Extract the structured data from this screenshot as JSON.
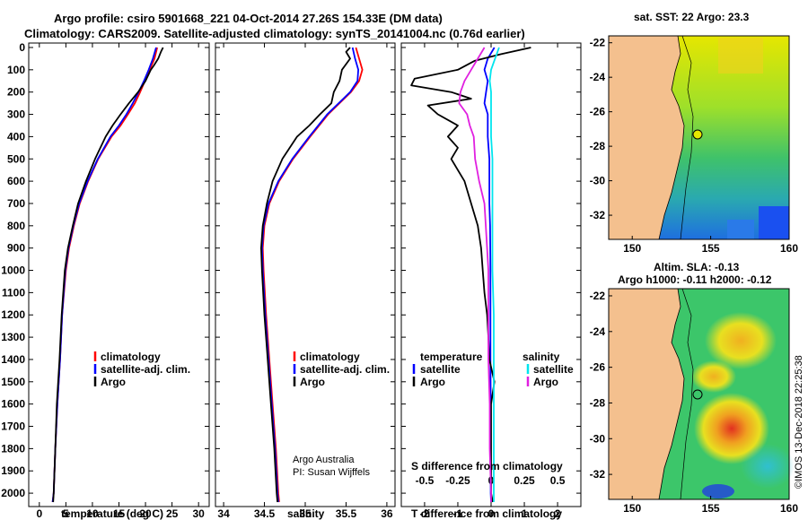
{
  "title": {
    "line1": "Argo profile: csiro 5901668_221 04-Oct-2014 27.26S 154.33E (DM data)",
    "line2": "Climatology: CARS2009. Satellite-adjusted climatology: synTS_20141004.nc (0.76d earlier)"
  },
  "colors": {
    "climatology": "#ff0000",
    "satellite": "#0000ff",
    "argo": "#000000",
    "sal_satellite": "#00e5ee",
    "sal_argo": "#e020e0",
    "land": "#f4c08e"
  },
  "chart_data": [
    {
      "type": "line",
      "id": "temperature",
      "xlabel": "temperature (deg C)",
      "xlim": [
        -2,
        32
      ],
      "ylim": [
        2060,
        -20
      ],
      "xticks": [
        0,
        5,
        10,
        15,
        20,
        25,
        30
      ],
      "xtick_labels": [
        "0",
        "5",
        "10",
        "15",
        "20",
        "25",
        "30"
      ],
      "yticks": [
        0,
        100,
        200,
        300,
        400,
        500,
        600,
        700,
        800,
        900,
        1000,
        1100,
        1200,
        1300,
        1400,
        1500,
        1600,
        1700,
        1800,
        1900,
        2000
      ],
      "ytick_labels": [
        "0",
        "100",
        "200",
        "300",
        "400",
        "500",
        "600",
        "700",
        "800",
        "900",
        "1000",
        "1100",
        "1200",
        "1300",
        "1400",
        "1500",
        "1600",
        "1700",
        "1800",
        "1900",
        "2000"
      ],
      "legend": [
        "climatology",
        "satellite-adj. clim.",
        "Argo"
      ],
      "series": [
        {
          "name": "climatology",
          "color": "#ff0000",
          "depth": [
            0,
            50,
            100,
            150,
            200,
            250,
            300,
            350,
            400,
            500,
            600,
            700,
            800,
            900,
            1000,
            1200,
            1400,
            1600,
            1800,
            2000,
            2040
          ],
          "values": [
            22.2,
            21.7,
            20.8,
            19.9,
            19.0,
            18.0,
            16.7,
            15.3,
            13.6,
            11.1,
            9.2,
            7.6,
            6.5,
            5.6,
            5.0,
            4.3,
            3.9,
            3.4,
            3.0,
            2.7,
            2.5
          ]
        },
        {
          "name": "satellite-adj. clim.",
          "color": "#0000ff",
          "depth": [
            0,
            50,
            100,
            150,
            200,
            250,
            300,
            350,
            400,
            500,
            600,
            700,
            800,
            900,
            1000,
            1200,
            1400,
            1600,
            1800,
            2000,
            2040
          ],
          "values": [
            22.0,
            21.4,
            20.6,
            19.7,
            18.7,
            17.6,
            16.4,
            15.0,
            13.4,
            11.0,
            9.1,
            7.5,
            6.4,
            5.5,
            4.9,
            4.3,
            3.9,
            3.4,
            3.0,
            2.7,
            2.5
          ]
        },
        {
          "name": "Argo",
          "color": "#000000",
          "depth": [
            0,
            20,
            50,
            80,
            100,
            150,
            200,
            250,
            300,
            350,
            400,
            500,
            600,
            700,
            800,
            900,
            1000,
            1200,
            1400,
            1600,
            1800,
            2000,
            2040
          ],
          "values": [
            23.3,
            22.9,
            22.4,
            21.6,
            21.0,
            20.0,
            18.6,
            16.9,
            15.3,
            13.8,
            12.5,
            10.5,
            8.8,
            7.3,
            6.3,
            5.4,
            4.8,
            4.2,
            3.8,
            3.3,
            3.0,
            2.7,
            2.6
          ]
        }
      ]
    },
    {
      "type": "line",
      "id": "salinity",
      "xlabel": "salinity",
      "xlim": [
        33.9,
        36.1
      ],
      "ylim": [
        2060,
        -20
      ],
      "xticks": [
        34,
        34.5,
        35,
        35.5,
        36
      ],
      "xtick_labels": [
        "34",
        "34.5",
        "35",
        "35.5",
        "36"
      ],
      "legend": [
        "climatology",
        "satellite-adj. clim.",
        "Argo"
      ],
      "annotation": [
        "Argo Australia",
        "PI: Susan Wijffels"
      ],
      "series": [
        {
          "name": "climatology",
          "color": "#ff0000",
          "depth": [
            0,
            50,
            100,
            150,
            200,
            300,
            400,
            500,
            600,
            700,
            800,
            900,
            1000,
            1200,
            1400,
            1600,
            1800,
            2000,
            2040
          ],
          "values": [
            35.62,
            35.66,
            35.7,
            35.66,
            35.56,
            35.28,
            35.06,
            34.85,
            34.68,
            34.56,
            34.5,
            34.48,
            34.49,
            34.52,
            34.56,
            34.6,
            34.64,
            34.67,
            34.68
          ]
        },
        {
          "name": "satellite-adj. clim.",
          "color": "#0000ff",
          "depth": [
            0,
            50,
            100,
            150,
            200,
            300,
            400,
            500,
            600,
            700,
            800,
            900,
            1000,
            1200,
            1400,
            1600,
            1800,
            2000,
            2040
          ],
          "values": [
            35.58,
            35.61,
            35.65,
            35.64,
            35.55,
            35.27,
            35.05,
            34.84,
            34.67,
            34.55,
            34.49,
            34.47,
            34.48,
            34.51,
            34.55,
            34.59,
            34.63,
            34.66,
            34.67
          ]
        },
        {
          "name": "Argo",
          "color": "#000000",
          "depth": [
            0,
            20,
            50,
            100,
            150,
            200,
            250,
            300,
            350,
            400,
            500,
            600,
            700,
            800,
            900,
            1000,
            1200,
            1400,
            1600,
            1800,
            2000,
            2040
          ],
          "values": [
            35.55,
            35.5,
            35.55,
            35.45,
            35.42,
            35.35,
            35.32,
            35.18,
            35.05,
            34.9,
            34.72,
            34.6,
            34.53,
            34.48,
            34.46,
            34.47,
            34.5,
            34.54,
            34.58,
            34.62,
            34.65,
            34.66
          ]
        }
      ]
    },
    {
      "type": "line",
      "id": "difference",
      "xlabel": "T difference from climatology",
      "xlabel2": "S difference from climatology",
      "xlim": [
        -2.7,
        2.7
      ],
      "ylim": [
        2060,
        -20
      ],
      "xticks": [
        -2,
        -1,
        0,
        1,
        2
      ],
      "xtick_labels": [
        "-2",
        "-1",
        "0",
        "1",
        "2"
      ],
      "s_ticks": [
        -0.5,
        -0.25,
        0,
        0.25,
        0.5
      ],
      "s_tick_labels": [
        "-0.5",
        "-0.25",
        "0",
        "0.25",
        "0.5"
      ],
      "s_scale": 4,
      "legend_left_title": "temperature",
      "legend_right_title": "salinity",
      "legend": [
        "satellite",
        "Argo",
        "satellite",
        "Argo"
      ],
      "series": [
        {
          "name": "temperature satellite",
          "color": "#0000ff",
          "depth": [
            0,
            50,
            100,
            150,
            200,
            250,
            300,
            400,
            500,
            600,
            700,
            800,
            1000,
            1200,
            1400,
            1600,
            1800,
            2000,
            2040
          ],
          "values": [
            0.1,
            -0.1,
            -0.2,
            -0.1,
            -0.15,
            -0.2,
            -0.1,
            -0.1,
            -0.05,
            -0.05,
            -0.05,
            -0.03,
            -0.02,
            -0.02,
            -0.02,
            -0.01,
            -0.01,
            -0.01,
            0.0
          ]
        },
        {
          "name": "temperature Argo",
          "color": "#000000",
          "depth": [
            0,
            30,
            60,
            100,
            140,
            170,
            200,
            230,
            260,
            300,
            350,
            400,
            450,
            500,
            600,
            700,
            800,
            900,
            1000,
            1100,
            1200,
            1300,
            1400,
            1500,
            1600,
            1800,
            2000,
            2040
          ],
          "values": [
            1.2,
            0.3,
            -0.5,
            -1.0,
            -2.3,
            -2.4,
            -1.2,
            -0.6,
            -1.9,
            -1.6,
            -1.0,
            -1.3,
            -1.0,
            -1.2,
            -0.8,
            -0.6,
            -0.4,
            -0.3,
            -0.25,
            -0.2,
            -0.12,
            -0.08,
            -0.05,
            0.1,
            0.0,
            0.0,
            0.0,
            0.05
          ]
        },
        {
          "name": "salinity satellite",
          "color": "#00e5ee",
          "depth": [
            0,
            50,
            100,
            150,
            200,
            300,
            400,
            500,
            600,
            700,
            800,
            1000,
            1200,
            1400,
            1600,
            1800,
            2000,
            2040
          ],
          "values": [
            0.06,
            0.03,
            0.0,
            -0.01,
            0.0,
            0.0,
            0.0,
            0.01,
            0.01,
            0.01,
            0.01,
            0.01,
            0.02,
            0.02,
            0.02,
            0.02,
            0.02,
            0.02
          ]
        },
        {
          "name": "salinity Argo",
          "color": "#e020e0",
          "depth": [
            0,
            100,
            150,
            200,
            250,
            300,
            350,
            400,
            500,
            600,
            700,
            800,
            1000,
            1200,
            1400,
            1600,
            1800,
            2000,
            2040
          ],
          "values": [
            -0.05,
            -0.15,
            -0.2,
            -0.23,
            -0.24,
            -0.18,
            -0.16,
            -0.13,
            -0.12,
            -0.09,
            -0.05,
            -0.04,
            -0.02,
            -0.02,
            -0.02,
            -0.01,
            -0.01,
            0.0,
            0.0
          ]
        }
      ]
    }
  ],
  "maps": {
    "sst": {
      "title": "sat. SST: 22 Argo: 23.3",
      "xticks": [
        "150",
        "155",
        "160"
      ],
      "yticks": [
        "-22",
        "-24",
        "-26",
        "-28",
        "-30",
        "-32"
      ]
    },
    "sla": {
      "title1": "Altim. SLA: -0.13",
      "title2": "Argo h1000: -0.11 h2000: -0.12",
      "xticks": [
        "150",
        "155",
        "160"
      ],
      "yticks": [
        "-22",
        "-24",
        "-26",
        "-28",
        "-30",
        "-32"
      ]
    }
  },
  "footer": "©IMOS 13-Dec-2018 22:25:38"
}
